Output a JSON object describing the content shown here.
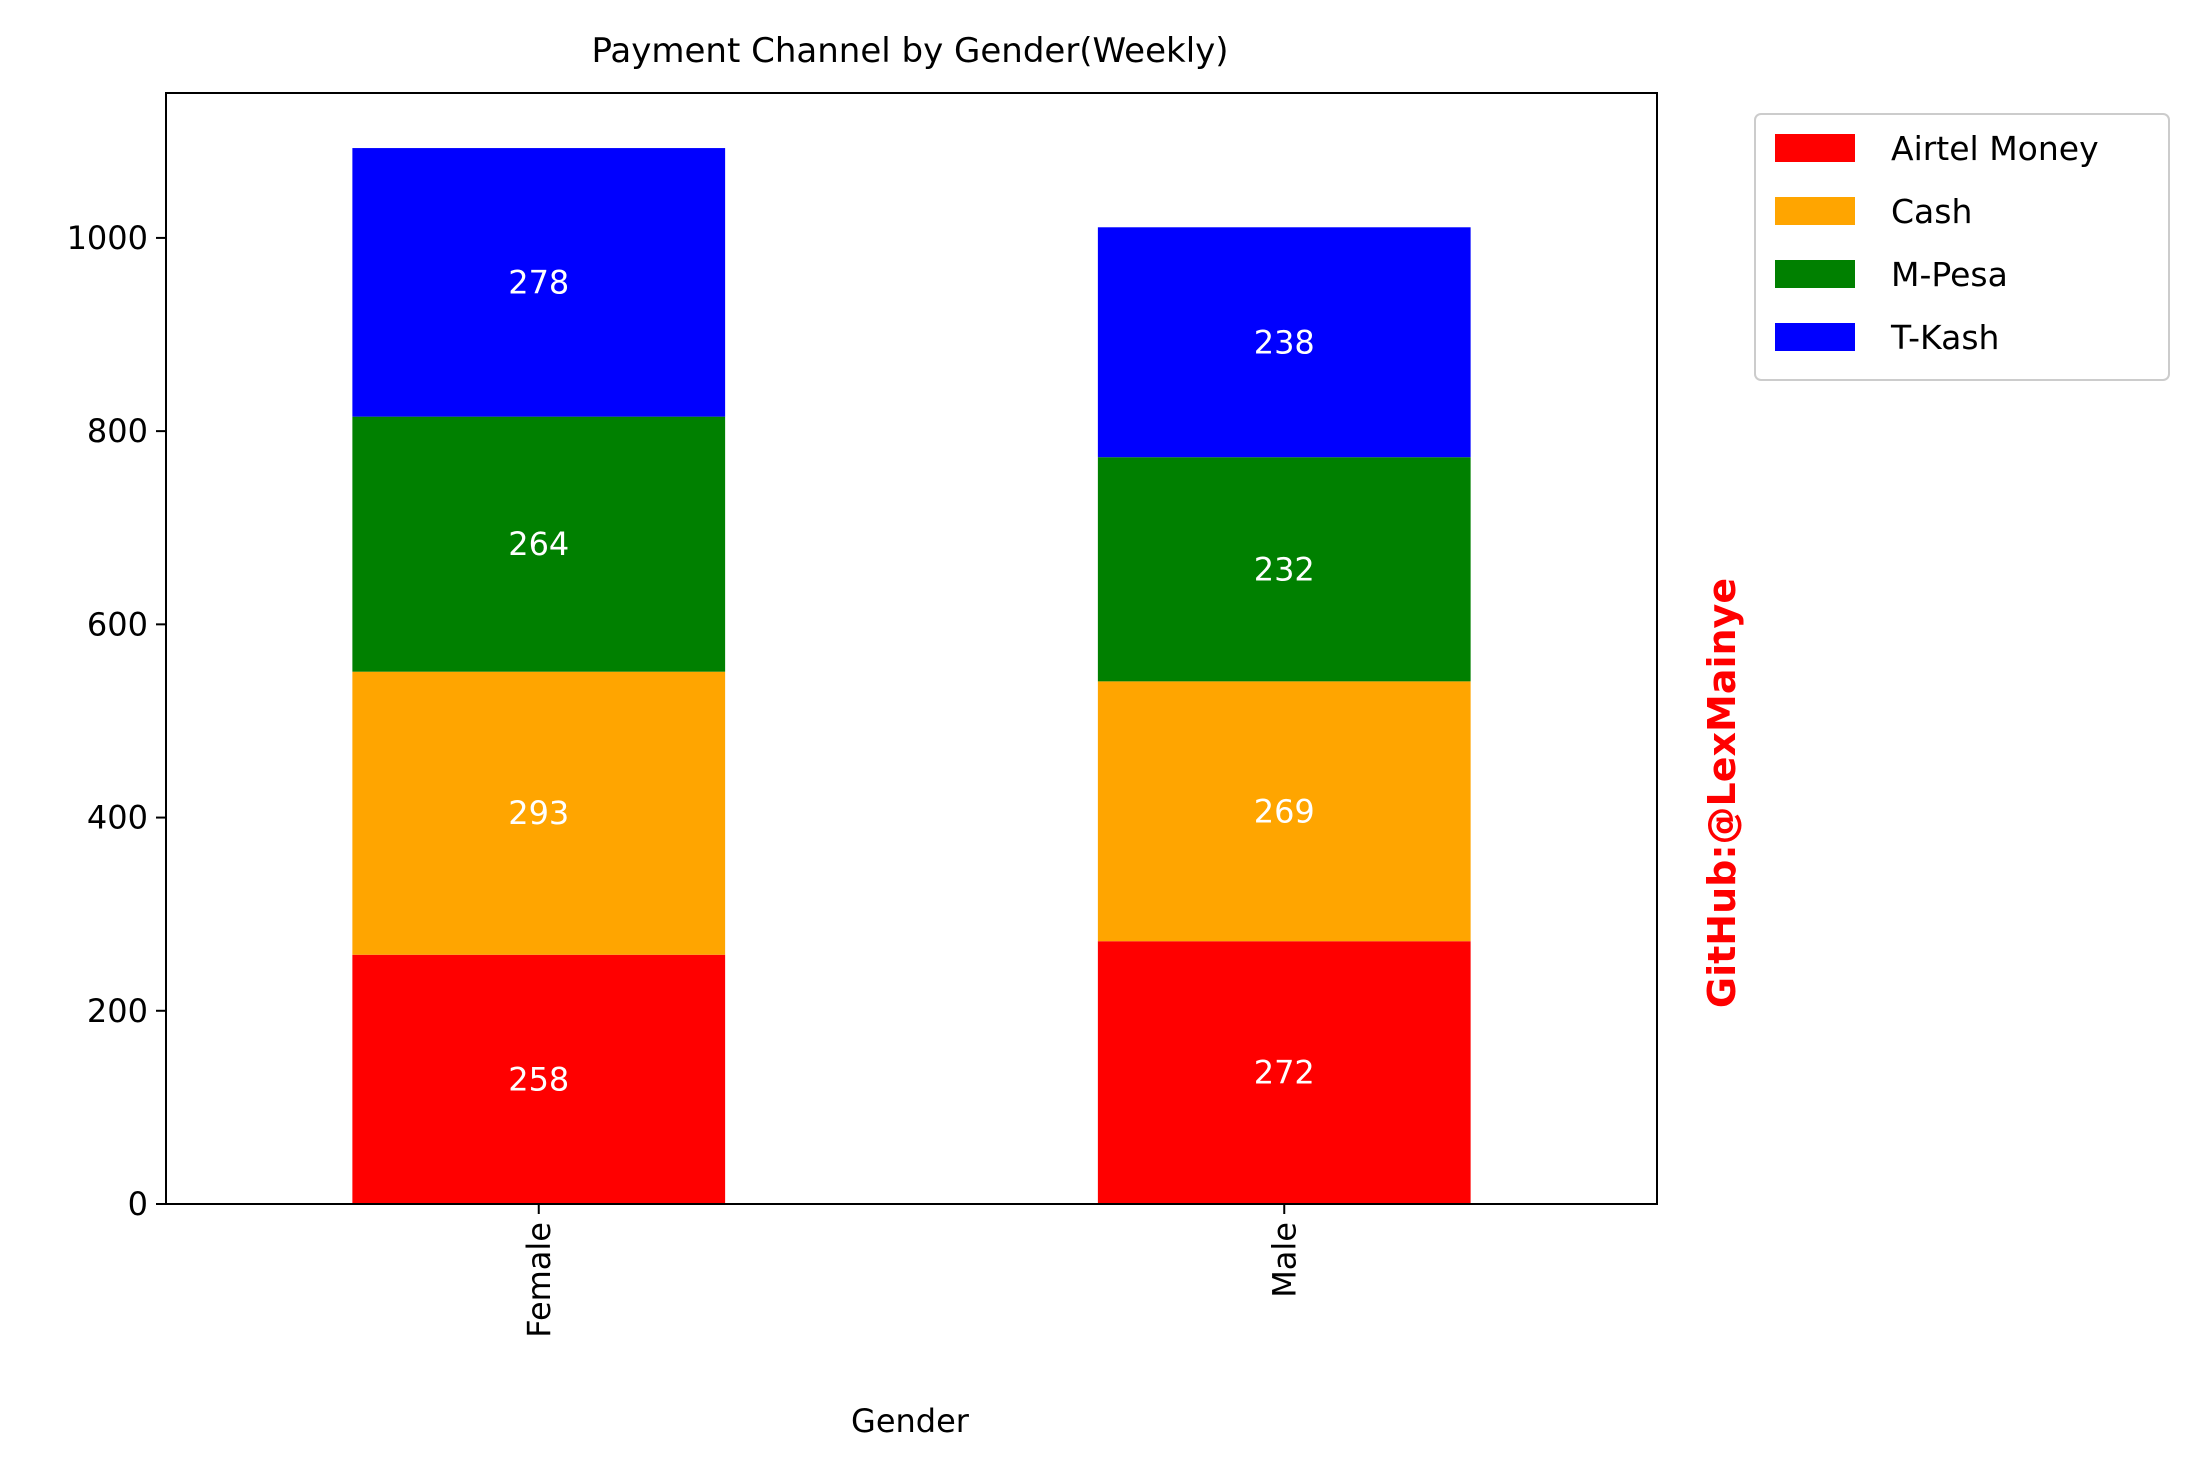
{
  "chart_data": {
    "type": "bar",
    "stacked": true,
    "title": "Payment Channel by Gender(Weekly)",
    "xlabel": "Gender",
    "ylabel": "",
    "categories": [
      "Female",
      "Male"
    ],
    "series": [
      {
        "name": "Airtel Money",
        "color": "#ff0000",
        "values": [
          258,
          272
        ]
      },
      {
        "name": "Cash",
        "color": "#ffa500",
        "values": [
          293,
          269
        ]
      },
      {
        "name": "M-Pesa",
        "color": "#008000",
        "values": [
          264,
          232
        ]
      },
      {
        "name": "T-Kash",
        "color": "#0000ff",
        "values": [
          278,
          238
        ]
      }
    ],
    "ylim": [
      0,
      1150
    ],
    "yticks": [
      0,
      200,
      400,
      600,
      800,
      1000
    ],
    "legend_position": "outside-upper-right",
    "grid": false
  },
  "watermark": {
    "text": "GitHub:@LexMainye",
    "color": "#ff0000"
  }
}
